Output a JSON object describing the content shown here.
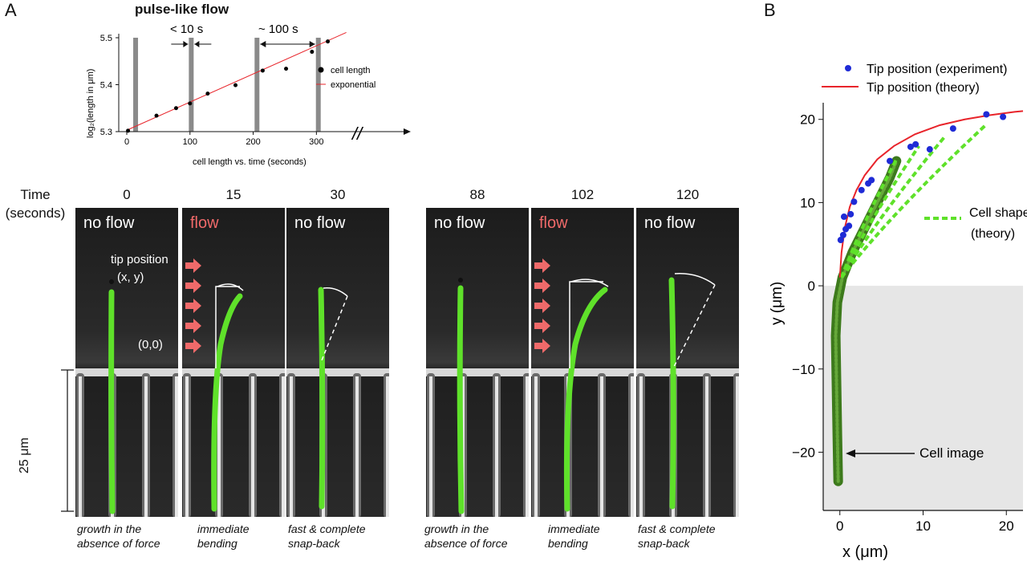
{
  "panel_a": {
    "letter": "A",
    "plot": {
      "title": "pulse-like flow",
      "ylabel": "log₂(length in μm)",
      "xlabel": "cell length vs. time (seconds)",
      "annot_short": "< 10 s",
      "annot_long": "~ 100 s",
      "break_mark": "//",
      "legend": {
        "points": "cell length",
        "line": "exponential"
      }
    },
    "time_header": {
      "line1": "Time",
      "line2": "(seconds)"
    },
    "frames": [
      {
        "time": "0",
        "label": "no flow",
        "flow": false
      },
      {
        "time": "15",
        "label": "flow",
        "flow": true
      },
      {
        "time": "30",
        "label": "no flow",
        "flow": false
      },
      {
        "time": "88",
        "label": "no flow",
        "flow": false
      },
      {
        "time": "102",
        "label": "flow",
        "flow": true
      },
      {
        "time": "120",
        "label": "no flow",
        "flow": false
      }
    ],
    "tip_label_1": "tip position",
    "tip_label_2": "(x, y)",
    "origin_label": "(0,0)",
    "scale_label": "25 μm",
    "captions": [
      {
        "line1": "growth in the",
        "line2": "absence of force"
      },
      {
        "line1": "immediate",
        "line2": "bending"
      },
      {
        "line1": "fast & complete",
        "line2": "snap-back"
      },
      {
        "line1": "growth in the",
        "line2": "absence of force"
      },
      {
        "line1": "immediate",
        "line2": "bending"
      },
      {
        "line1": "fast & complete",
        "line2": "snap-back"
      }
    ]
  },
  "panel_b": {
    "letter": "B",
    "legend_experiment": "Tip position (experiment)",
    "legend_theory": "Tip position (theory)",
    "cell_shape_1": "Cell shape",
    "cell_shape_2": "(theory)",
    "cell_image": "Cell image",
    "ylabel": "y (μm)",
    "xlabel": "x (μm)"
  },
  "colors": {
    "theory": "#e8242b",
    "experiment": "#1f2bd6",
    "cell": "#5fe12a",
    "flow": "#f06a6a",
    "pulse_bar": "#8a8a8a"
  },
  "chart_data": [
    {
      "type": "scatter",
      "title": "pulse-like flow",
      "xlabel": "cell length vs. time (seconds)",
      "ylabel": "log₂(length in μm)",
      "xlim": [
        0,
        330
      ],
      "ylim": [
        5.3,
        5.5
      ],
      "xticks": [
        0,
        100,
        200,
        300
      ],
      "yticks": [
        5.3,
        5.4,
        5.5
      ],
      "legend": "right",
      "series": [
        {
          "name": "cell length",
          "x": [
            2,
            47,
            78,
            100,
            128,
            172,
            215,
            252,
            293,
            318
          ],
          "y": [
            5.302,
            5.334,
            5.35,
            5.36,
            5.381,
            5.399,
            5.43,
            5.434,
            5.47,
            5.492
          ]
        },
        {
          "name": "exponential",
          "x": [
            0,
            360
          ],
          "y": [
            5.303,
            5.518
          ]
        }
      ],
      "pulse_times": [
        14,
        102,
        206,
        303
      ]
    },
    {
      "type": "scatter",
      "xlabel": "x (μm)",
      "ylabel": "y (μm)",
      "xlim": [
        -2,
        22
      ],
      "ylim": [
        -27,
        22
      ],
      "xticks": [
        0,
        10,
        20
      ],
      "yticks": [
        -20,
        -10,
        0,
        10,
        20
      ],
      "legend": "top-right",
      "series": [
        {
          "name": "Tip position (experiment)",
          "x": [
            0.1,
            0.4,
            0.7,
            1.1,
            0.5,
            1.3,
            1.7,
            2.6,
            3.4,
            3.8,
            6.0,
            8.5,
            9.1,
            10.8,
            13.6,
            17.6,
            19.6
          ],
          "y": [
            5.5,
            6.1,
            6.8,
            7.2,
            8.3,
            8.6,
            10.1,
            11.5,
            12.3,
            12.7,
            15.0,
            16.7,
            17.0,
            16.4,
            18.9,
            20.6,
            20.3
          ]
        },
        {
          "name": "Tip position (theory)",
          "x": [
            0.0,
            0.2,
            0.6,
            1.2,
            2.0,
            3.0,
            4.5,
            6.5,
            9.0,
            12.0,
            15.0,
            18.0,
            21.0,
            22.0
          ],
          "y": [
            1.0,
            4.0,
            7.0,
            9.5,
            11.5,
            13.3,
            15.2,
            16.8,
            18.2,
            19.3,
            20.0,
            20.5,
            20.9,
            21.0
          ]
        }
      ]
    }
  ]
}
